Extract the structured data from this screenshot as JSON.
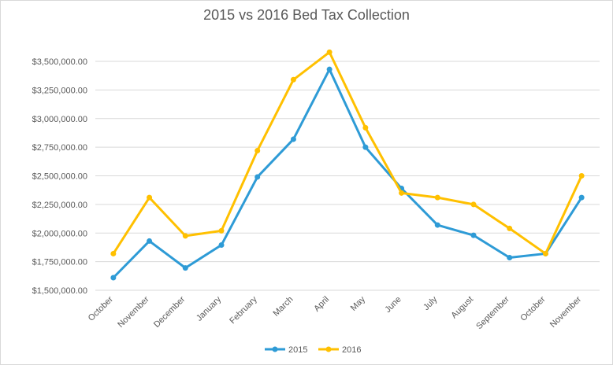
{
  "chart_data": {
    "type": "line",
    "title": "2015 vs 2016 Bed Tax Collection",
    "xlabel": "",
    "ylabel": "",
    "categories": [
      "October",
      "November",
      "December",
      "January",
      "February",
      "March",
      "April",
      "May",
      "June",
      "July",
      "August",
      "September",
      "October",
      "November"
    ],
    "ylim": [
      1500000,
      3500000
    ],
    "yticks": [
      1500000,
      1750000,
      2000000,
      2250000,
      2500000,
      2750000,
      3000000,
      3250000,
      3500000
    ],
    "ytick_labels": [
      "$1,500,000.00",
      "$1,750,000.00",
      "$2,000,000.00",
      "$2,250,000.00",
      "$2,500,000.00",
      "$2,750,000.00",
      "$3,000,000.00",
      "$3,250,000.00",
      "$3,500,000.00"
    ],
    "grid": true,
    "legend_position": "bottom",
    "series": [
      {
        "name": "2015",
        "color": "#2E9BD6",
        "values": [
          1610000,
          1930000,
          1695000,
          1895000,
          2490000,
          2820000,
          3430000,
          2750000,
          2390000,
          2070000,
          1980000,
          1785000,
          1820000,
          2310000
        ]
      },
      {
        "name": "2016",
        "color": "#FFC000",
        "values": [
          1820000,
          2310000,
          1975000,
          2020000,
          2720000,
          3340000,
          3580000,
          2920000,
          2350000,
          2310000,
          2250000,
          2040000,
          1820000,
          2500000
        ]
      }
    ]
  }
}
